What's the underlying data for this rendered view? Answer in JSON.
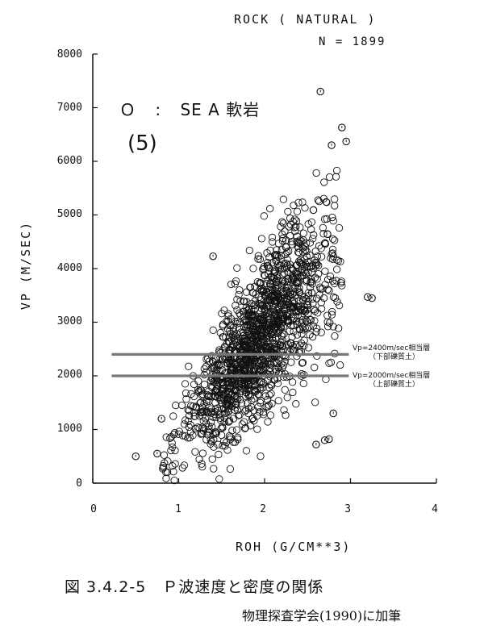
{
  "chart_data": {
    "type": "scatter",
    "title": "ROCK ( NATURAL )",
    "subtitle": "N =  1899",
    "xlabel": "ROH (G/CM**3)",
    "ylabel": "VP (M/SEC)",
    "xlim": [
      0,
      4
    ],
    "ylim": [
      0,
      8000
    ],
    "x_ticks": [
      "0",
      "1",
      "2",
      "3",
      "4"
    ],
    "y_ticks": [
      "0",
      "1000",
      "2000",
      "3000",
      "4000",
      "5000",
      "6000",
      "7000",
      "8000"
    ],
    "legend": [
      {
        "symbol": "circle-with-tick",
        "text": "SE A 軟岩"
      }
    ],
    "panel_label": "(5)",
    "points": [
      [
        2.65,
        7300
      ],
      [
        2.9,
        6630
      ],
      [
        2.95,
        6370
      ],
      [
        2.78,
        6300
      ],
      [
        3.25,
        3450
      ],
      [
        0.5,
        500
      ],
      [
        0.75,
        550
      ],
      [
        0.8,
        1200
      ],
      [
        1.4,
        4230
      ],
      [
        2.6,
        720
      ],
      [
        2.7,
        800
      ],
      [
        2.75,
        820
      ],
      [
        3.2,
        3470
      ],
      [
        2.55,
        3550
      ],
      [
        2.8,
        1300
      ]
    ],
    "reference_lines": [
      {
        "y": 2400,
        "x_range": [
          0.22,
          2.98
        ],
        "label_line1": "Vp=2400m/sec相当層",
        "label_line2": "（下部礫質土）"
      },
      {
        "y": 2000,
        "x_range": [
          0.22,
          2.98
        ],
        "label_line1": "Vp=2000m/sec相当層",
        "label_line2": "（上部礫質土）"
      }
    ]
  },
  "legend_marker": "Ｏ",
  "legend_colon": ":",
  "legend_text": "SE A 軟岩",
  "caption": "図 3.4.2-5　Ｐ波速度と密度の関係",
  "credit": "物理探査学会(1990)に加筆"
}
